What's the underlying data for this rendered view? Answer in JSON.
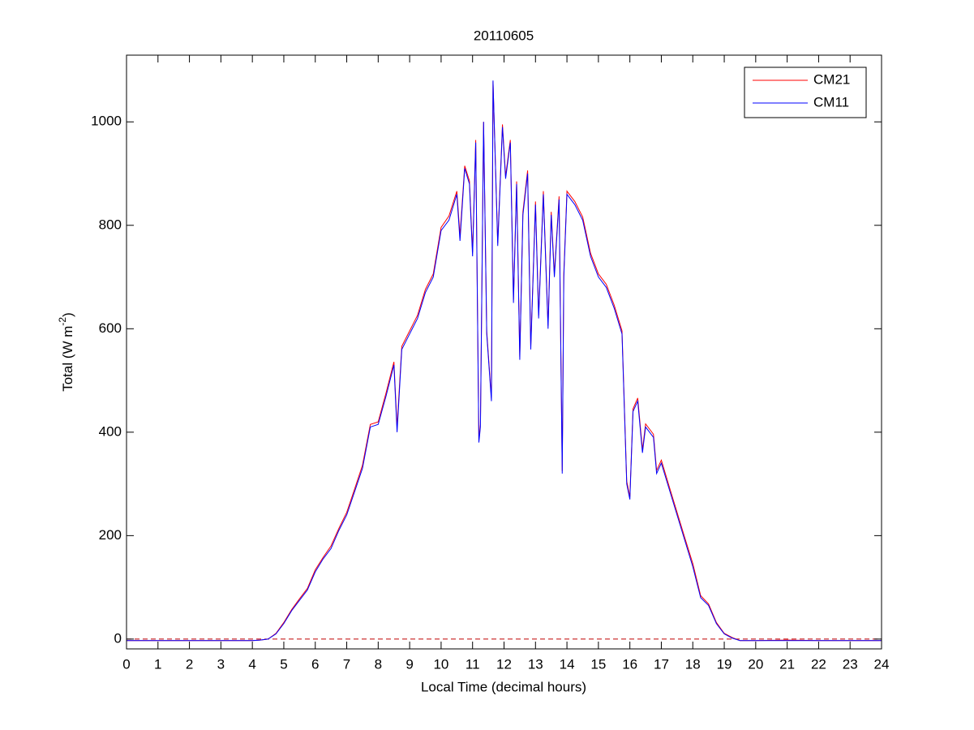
{
  "chart_data": {
    "type": "line",
    "title": "20110605",
    "xlabel": "Local Time (decimal hours)",
    "ylabel": [
      "Total (W m",
      "-2",
      ")"
    ],
    "x": [
      0,
      1,
      2,
      3,
      4,
      4.25,
      4.5,
      4.75,
      5,
      5.25,
      5.5,
      5.75,
      6,
      6.25,
      6.5,
      6.75,
      7,
      7.25,
      7.5,
      7.75,
      8,
      8.25,
      8.5,
      8.6,
      8.75,
      9,
      9.25,
      9.5,
      9.75,
      10,
      10.25,
      10.5,
      10.6,
      10.75,
      10.9,
      11,
      11.1,
      11.2,
      11.25,
      11.35,
      11.45,
      11.6,
      11.65,
      11.8,
      11.95,
      12.05,
      12.2,
      12.3,
      12.4,
      12.5,
      12.6,
      12.75,
      12.85,
      13,
      13.1,
      13.25,
      13.4,
      13.5,
      13.6,
      13.75,
      13.85,
      13.9,
      14,
      14.25,
      14.5,
      14.75,
      15,
      15.25,
      15.5,
      15.75,
      15.9,
      16,
      16.1,
      16.25,
      16.4,
      16.5,
      16.75,
      16.85,
      17,
      17.25,
      17.5,
      17.75,
      18,
      18.25,
      18.5,
      18.75,
      19,
      19.25,
      19.5,
      20,
      21,
      22,
      23,
      24
    ],
    "series": [
      {
        "name": "CM21",
        "color": "#ff0000",
        "values": [
          -3,
          -3,
          -3,
          -3,
          -3,
          -2,
          0,
          11,
          32,
          57,
          78,
          98,
          134,
          158,
          180,
          214,
          245,
          290,
          336,
          415,
          420,
          476,
          536,
          410,
          566,
          596,
          626,
          676,
          706,
          796,
          818,
          866,
          780,
          915,
          886,
          748,
          965,
          385,
          415,
          1000,
          595,
          465,
          1078,
          766,
          995,
          895,
          965,
          656,
          885,
          546,
          826,
          906,
          566,
          846,
          626,
          866,
          606,
          826,
          706,
          856,
          325,
          706,
          866,
          846,
          816,
          746,
          706,
          686,
          646,
          596,
          305,
          275,
          445,
          466,
          366,
          416,
          396,
          326,
          346,
          295,
          245,
          195,
          146,
          84,
          68,
          32,
          11,
          3,
          -3,
          -3,
          -2,
          -3,
          -3,
          -3
        ]
      },
      {
        "name": "CM11",
        "color": "#0000ff",
        "values": [
          -3,
          -3,
          -3,
          -3,
          -3,
          -2,
          0,
          10,
          30,
          55,
          75,
          95,
          130,
          155,
          175,
          210,
          240,
          285,
          330,
          410,
          415,
          470,
          530,
          400,
          560,
          590,
          620,
          670,
          700,
          790,
          810,
          860,
          770,
          910,
          880,
          740,
          960,
          380,
          410,
          1000,
          590,
          460,
          1080,
          760,
          990,
          890,
          960,
          650,
          880,
          540,
          820,
          900,
          560,
          840,
          620,
          860,
          600,
          820,
          700,
          850,
          320,
          700,
          860,
          840,
          810,
          740,
          700,
          680,
          640,
          590,
          300,
          270,
          440,
          460,
          360,
          410,
          390,
          320,
          340,
          290,
          240,
          190,
          140,
          80,
          65,
          30,
          10,
          2,
          -3,
          -3,
          -3,
          -3,
          -3,
          -3
        ]
      }
    ],
    "reference_line": {
      "y": 0,
      "color": "#c00000",
      "dashed": true
    },
    "xlim": [
      0,
      24
    ],
    "xticks": [
      0,
      1,
      2,
      3,
      4,
      5,
      6,
      7,
      8,
      9,
      10,
      11,
      12,
      13,
      14,
      15,
      16,
      17,
      18,
      19,
      20,
      21,
      22,
      23,
      24
    ],
    "ylim": [
      -19,
      1129
    ],
    "yticks": [
      0,
      200,
      400,
      600,
      800,
      1000
    ],
    "legend": "upper right",
    "grid": false
  }
}
